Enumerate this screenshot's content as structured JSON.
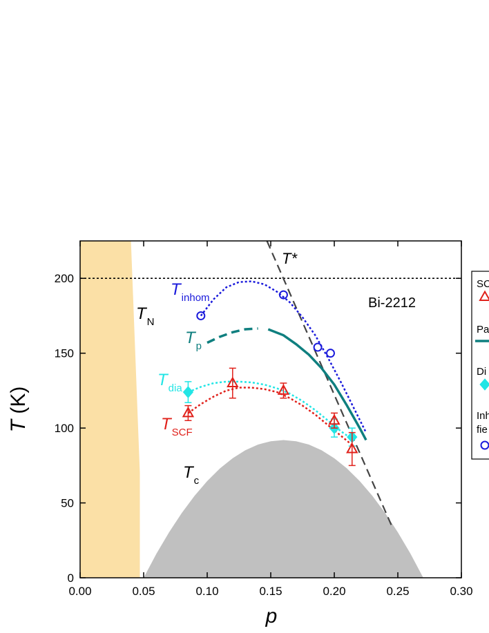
{
  "chart_data": {
    "type": "line",
    "xlabel": "p",
    "ylabel": {
      "symbol": "T",
      "unit": "(K)"
    },
    "xlim": [
      0,
      0.3
    ],
    "ylim": [
      0,
      225
    ],
    "xticks": [
      {
        "value": 0,
        "label": "0.00"
      },
      {
        "value": 0.05,
        "label": "0.05"
      },
      {
        "value": 0.1,
        "label": "0.10"
      },
      {
        "value": 0.15,
        "label": "0.15"
      },
      {
        "value": 0.2,
        "label": "0.20"
      },
      {
        "value": 0.25,
        "label": "0.25"
      },
      {
        "value": 0.3,
        "label": "0.30"
      }
    ],
    "yticks": [
      0,
      50,
      100,
      150,
      200
    ],
    "series": [
      {
        "kind": "area",
        "color": "#fbe0a6",
        "x": [
          0,
          0.04,
          0.047,
          0.047,
          0
        ],
        "values": [
          225,
          225,
          70,
          0,
          0
        ]
      },
      {
        "kind": "area",
        "color": "#c0c0c0",
        "x": [
          0.05,
          0.06,
          0.07,
          0.08,
          0.09,
          0.1,
          0.11,
          0.12,
          0.13,
          0.14,
          0.15,
          0.16,
          0.17,
          0.18,
          0.19,
          0.2,
          0.21,
          0.22,
          0.23,
          0.24,
          0.25,
          0.26,
          0.27
        ],
        "values": [
          0,
          16,
          30.4,
          43.3,
          54.7,
          64.6,
          73,
          79.8,
          85.2,
          89,
          91.2,
          92,
          91.2,
          89,
          85.2,
          79.8,
          73,
          64.6,
          54.7,
          43.3,
          30.4,
          16,
          0
        ]
      },
      {
        "kind": "line",
        "style": "dotted",
        "width": 1.6,
        "color": "#000000",
        "x": [
          0,
          0.3
        ],
        "values": [
          200,
          200
        ]
      },
      {
        "kind": "line",
        "style": "dashed",
        "width": 2.2,
        "color": "#444444",
        "x": [
          0.147,
          0.245
        ],
        "values": [
          225,
          35
        ]
      },
      {
        "kind": "line",
        "style": "dotted",
        "width": 2.5,
        "color": "#1a1adb",
        "x": [
          0.095,
          0.105,
          0.115,
          0.125,
          0.135,
          0.145,
          0.155,
          0.165,
          0.175,
          0.185,
          0.195,
          0.205,
          0.215,
          0.225
        ],
        "values": [
          175,
          186,
          194,
          197.5,
          198,
          196,
          191,
          184,
          174,
          162,
          147,
          131,
          114,
          97
        ]
      },
      {
        "kind": "line",
        "style": "dashed",
        "width": 3.5,
        "color": "#0f7f7f",
        "x": [
          0.1,
          0.11,
          0.12,
          0.13,
          0.14
        ],
        "values": [
          157,
          161,
          164,
          166,
          166.5
        ]
      },
      {
        "kind": "line",
        "style": "solid",
        "width": 3.5,
        "color": "#0f7f7f",
        "x": [
          0.148,
          0.16,
          0.17,
          0.18,
          0.19,
          0.2,
          0.21,
          0.22,
          0.225
        ],
        "values": [
          166,
          162,
          156,
          149,
          140,
          129,
          115,
          100,
          92
        ]
      },
      {
        "kind": "line",
        "style": "dotted",
        "width": 2.5,
        "color": "#22e5e5",
        "x": [
          0.085,
          0.095,
          0.105,
          0.115,
          0.125,
          0.135,
          0.145,
          0.155,
          0.165,
          0.175,
          0.185,
          0.195,
          0.205,
          0.215
        ],
        "values": [
          124,
          127.5,
          130,
          131,
          131,
          130.5,
          129,
          126.5,
          123,
          118,
          112,
          105,
          98,
          92
        ]
      },
      {
        "kind": "line",
        "style": "dotted",
        "width": 2.5,
        "color": "#e0201a",
        "x": [
          0.085,
          0.095,
          0.105,
          0.115,
          0.125,
          0.135,
          0.145,
          0.155,
          0.165,
          0.175,
          0.185,
          0.195,
          0.205,
          0.215
        ],
        "values": [
          110,
          116,
          121,
          125,
          127,
          127,
          126,
          124,
          120,
          115,
          109,
          102,
          95,
          88
        ]
      },
      {
        "kind": "points",
        "marker": "diamond",
        "color": "#22e5e5",
        "x": [
          0.085,
          0.2,
          0.214
        ],
        "values": [
          124,
          100,
          94
        ],
        "errors": [
          7,
          6,
          6
        ]
      },
      {
        "kind": "points",
        "marker": "triangle",
        "color": "#e0201a",
        "x": [
          0.085,
          0.12,
          0.16,
          0.2,
          0.214
        ],
        "values": [
          110,
          130,
          125,
          105,
          86
        ],
        "errors": [
          5,
          10,
          5,
          5,
          11
        ]
      },
      {
        "kind": "points",
        "marker": "circle",
        "color": "#1a1adb",
        "x": [
          0.095,
          0.16,
          0.187,
          0.197
        ],
        "values": [
          175,
          189,
          154,
          150
        ]
      }
    ],
    "annotations": [
      {
        "text": "T*",
        "color": "#000000"
      },
      {
        "text": "Bi-2212",
        "color": "#000000"
      },
      {
        "text": "T",
        "sub": "N",
        "color": "#000000"
      },
      {
        "text": "T",
        "sub": "inhom",
        "color": "#1a1adb"
      },
      {
        "text": "T",
        "sub": "p",
        "color": "#0f7f7f"
      },
      {
        "text": "T",
        "sub": "dia",
        "color": "#22e5e5"
      },
      {
        "text": "T",
        "sub": "SCF",
        "color": "#e0201a"
      },
      {
        "text": "T",
        "sub": "c",
        "color": "#000000"
      }
    ],
    "legend": [
      {
        "text": "SC",
        "marker": "triangle",
        "color": "#e0201a"
      },
      {
        "text": "Pa",
        "marker": "line",
        "color": "#0f7f7f"
      },
      {
        "text": "Di",
        "marker": "diamond",
        "color": "#22e5e5"
      },
      {
        "text": "Inh",
        "marker": "none"
      },
      {
        "text": "fie",
        "marker": "circle",
        "color": "#1a1adb"
      }
    ]
  }
}
